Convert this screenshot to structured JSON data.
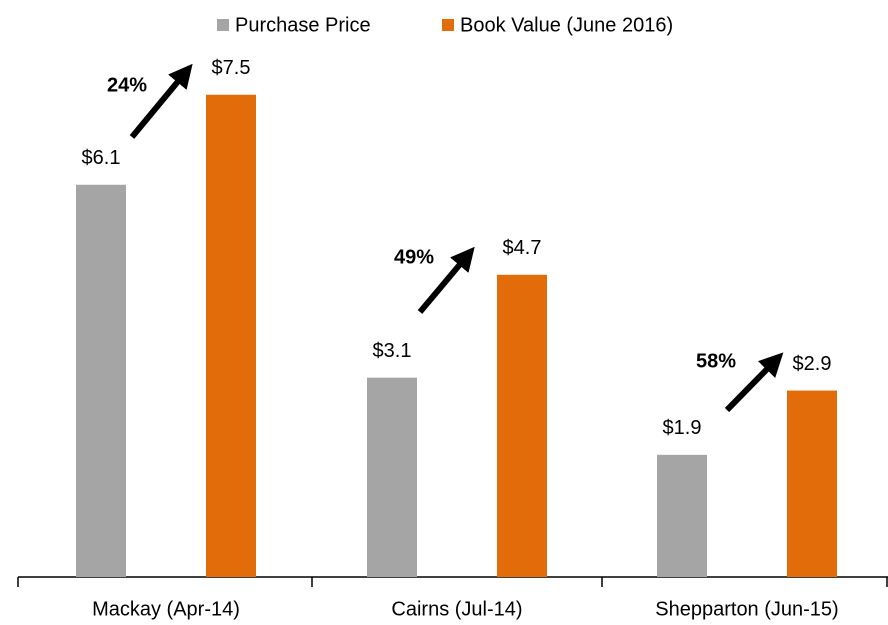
{
  "chart_data": {
    "type": "bar",
    "categories": [
      "Mackay (Apr-14)",
      "Cairns (Jul-14)",
      "Shepparton (Jun-15)"
    ],
    "series": [
      {
        "name": "Purchase Price",
        "color": "#a5a5a5",
        "values": [
          6.1,
          3.1,
          1.9
        ],
        "value_labels": [
          "$6.1",
          "$3.1",
          "$1.9"
        ]
      },
      {
        "name": "Book Value (June 2016)",
        "color": "#e36c0a",
        "values": [
          7.5,
          4.7,
          2.9
        ],
        "value_labels": [
          "$7.5",
          "$4.7",
          "$2.9"
        ]
      }
    ],
    "annotations": [
      "24%",
      "49%",
      "58%"
    ],
    "legend": "top"
  }
}
